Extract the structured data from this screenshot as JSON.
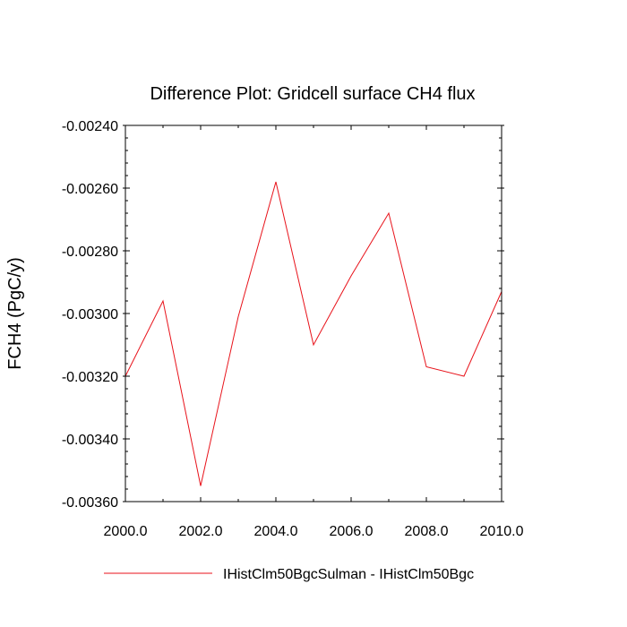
{
  "chart_data": {
    "type": "line",
    "title": "Difference Plot: Gridcell surface CH4 flux",
    "xlabel": "",
    "ylabel": "FCH4  (PgC/y)",
    "xlim": [
      2000.0,
      2010.0
    ],
    "ylim": [
      -0.0036,
      -0.0024
    ],
    "x_ticks": [
      2000.0,
      2002.0,
      2004.0,
      2006.0,
      2008.0,
      2010.0
    ],
    "x_tick_labels": [
      "2000.0",
      "2002.0",
      "2004.0",
      "2006.0",
      "2008.0",
      "2010.0"
    ],
    "x_minor_step": 1.0,
    "y_ticks": [
      -0.0024,
      -0.0026,
      -0.0028,
      -0.003,
      -0.0032,
      -0.0034,
      -0.0036
    ],
    "y_tick_labels": [
      "-0.00240",
      "-0.00260",
      "-0.00280",
      "-0.00300",
      "-0.00320",
      "-0.00340",
      "-0.00360"
    ],
    "y_minor_step": 4e-05,
    "grid": false,
    "legend_position": "bottom",
    "series": [
      {
        "name": "IHistClm50BgcSulman - IHistClm50Bgc",
        "color": "#e8121a",
        "x": [
          2000,
          2001,
          2002,
          2003,
          2004,
          2005,
          2006,
          2007,
          2008,
          2009,
          2010
        ],
        "y": [
          -0.0032,
          -0.00296,
          -0.00355,
          -0.00301,
          -0.00258,
          -0.0031,
          -0.00288,
          -0.00268,
          -0.00317,
          -0.0032,
          -0.00293
        ]
      }
    ]
  }
}
